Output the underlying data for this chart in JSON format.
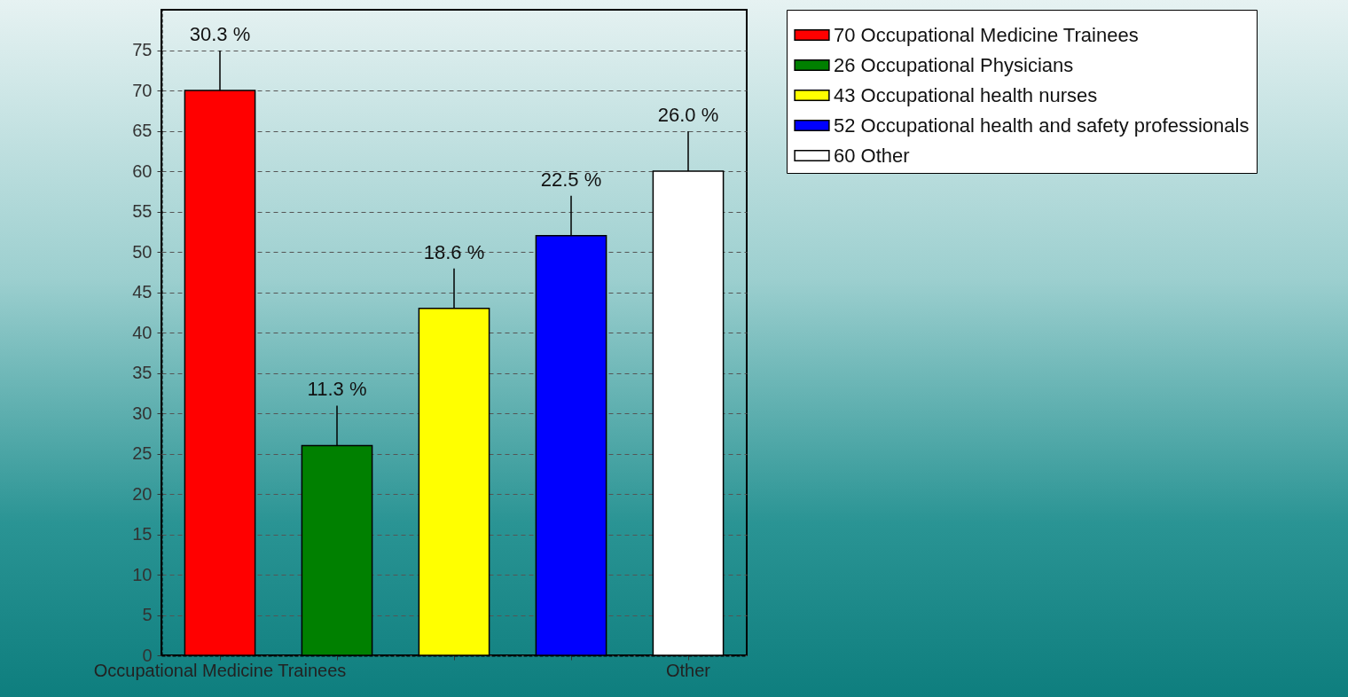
{
  "chart_data": {
    "type": "bar",
    "categories": [
      "Occupational Medicine Trainees",
      null,
      null,
      null,
      "Other"
    ],
    "series": [
      {
        "name": "70 Occupational Medicine Trainees",
        "color": "#ff0000",
        "values": [
          70,
          null,
          null,
          null,
          null
        ]
      },
      {
        "name": "26 Occupational Physicians",
        "color": "#008000",
        "values": [
          null,
          26,
          null,
          null,
          null
        ]
      },
      {
        "name": "43 Occupational health nurses",
        "color": "#ffff00",
        "values": [
          null,
          null,
          43,
          null,
          null
        ]
      },
      {
        "name": "52 Occupational health and safety professionals",
        "color": "#0000ff",
        "values": [
          null,
          null,
          null,
          52,
          null
        ]
      },
      {
        "name": "60 Other",
        "color": "#ffffff",
        "values": [
          null,
          null,
          null,
          null,
          60
        ]
      }
    ],
    "annotations": [
      {
        "text": "30.3 %",
        "x": "Occupational Medicine Trainees",
        "y": 70
      },
      {
        "text": "11.3 %",
        "y": 26
      },
      {
        "text": "18.6 %",
        "y": 43
      },
      {
        "text": "22.5 %",
        "y": 52
      },
      {
        "text": "26.0 %",
        "x": "Other",
        "y": 60
      }
    ],
    "ylim": [
      0,
      80
    ],
    "yticks": [
      0,
      5,
      10,
      15,
      20,
      25,
      30,
      35,
      40,
      45,
      50,
      55,
      60,
      65,
      70,
      75
    ],
    "grid": "y",
    "legend": "top right"
  }
}
